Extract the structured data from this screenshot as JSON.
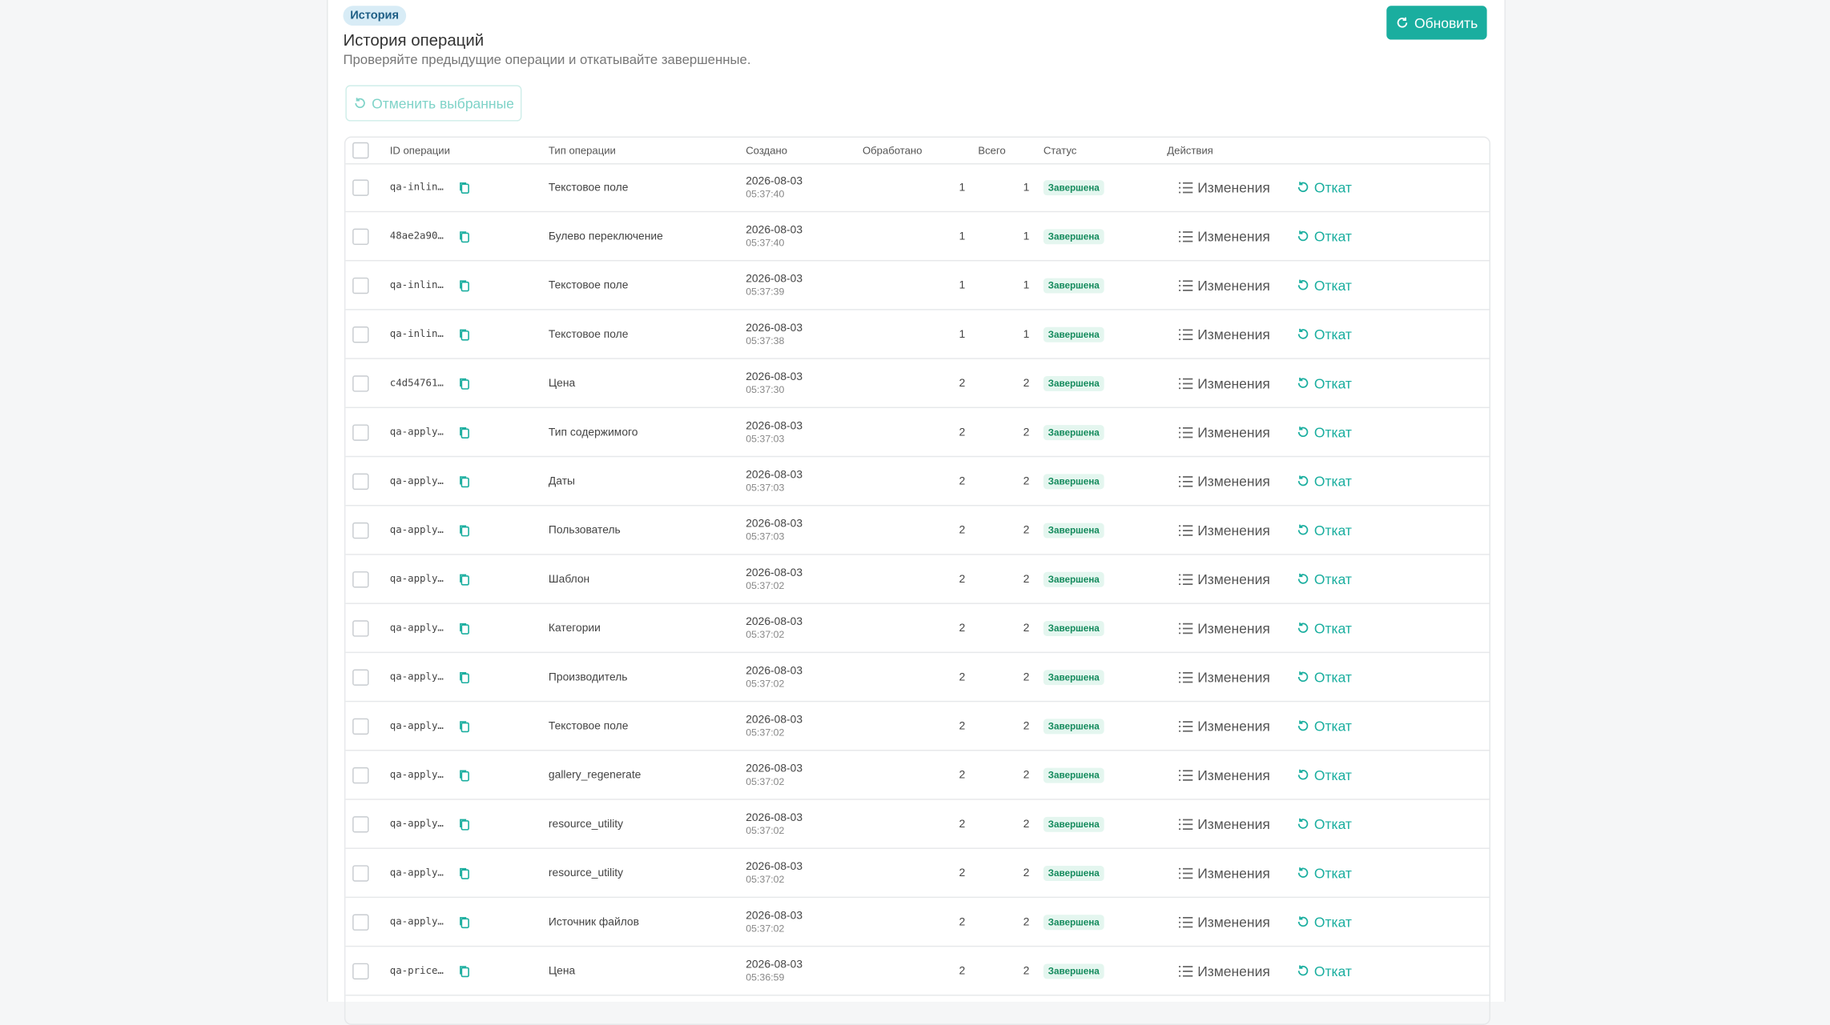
{
  "header": {
    "badge": "История",
    "title": "История операций",
    "subtitle": "Проверяйте предыдущие операции и откатывайте завершенные.",
    "refresh_button": "Обновить",
    "cancel_selected_button": "Отменить выбранные"
  },
  "table": {
    "columns": [
      "ID операции",
      "Тип операции",
      "Создано",
      "Обработано",
      "Всего",
      "Статус",
      "Действия"
    ],
    "actions": [
      "Изменения",
      "Откат"
    ],
    "rows": [
      {
        "id": "qa-inlin…",
        "type": "Текстовое поле",
        "date": "2026-08-03",
        "time": "05:37:40",
        "processed": 1,
        "total": 1,
        "status": "Завершена"
      },
      {
        "id": "48ae2a90…",
        "type": "Булево переключение",
        "date": "2026-08-03",
        "time": "05:37:40",
        "processed": 1,
        "total": 1,
        "status": "Завершена"
      },
      {
        "id": "qa-inlin…",
        "type": "Текстовое поле",
        "date": "2026-08-03",
        "time": "05:37:39",
        "processed": 1,
        "total": 1,
        "status": "Завершена"
      },
      {
        "id": "qa-inlin…",
        "type": "Текстовое поле",
        "date": "2026-08-03",
        "time": "05:37:38",
        "processed": 1,
        "total": 1,
        "status": "Завершена"
      },
      {
        "id": "c4d54761…",
        "type": "Цена",
        "date": "2026-08-03",
        "time": "05:37:30",
        "processed": 2,
        "total": 2,
        "status": "Завершена"
      },
      {
        "id": "qa-apply…",
        "type": "Тип содержимого",
        "date": "2026-08-03",
        "time": "05:37:03",
        "processed": 2,
        "total": 2,
        "status": "Завершена"
      },
      {
        "id": "qa-apply…",
        "type": "Даты",
        "date": "2026-08-03",
        "time": "05:37:03",
        "processed": 2,
        "total": 2,
        "status": "Завершена"
      },
      {
        "id": "qa-apply…",
        "type": "Пользователь",
        "date": "2026-08-03",
        "time": "05:37:03",
        "processed": 2,
        "total": 2,
        "status": "Завершена"
      },
      {
        "id": "qa-apply…",
        "type": "Шаблон",
        "date": "2026-08-03",
        "time": "05:37:02",
        "processed": 2,
        "total": 2,
        "status": "Завершена"
      },
      {
        "id": "qa-apply…",
        "type": "Категории",
        "date": "2026-08-03",
        "time": "05:37:02",
        "processed": 2,
        "total": 2,
        "status": "Завершена"
      },
      {
        "id": "qa-apply…",
        "type": "Производитель",
        "date": "2026-08-03",
        "time": "05:37:02",
        "processed": 2,
        "total": 2,
        "status": "Завершена"
      },
      {
        "id": "qa-apply…",
        "type": "Текстовое поле",
        "date": "2026-08-03",
        "time": "05:37:02",
        "processed": 2,
        "total": 2,
        "status": "Завершена"
      },
      {
        "id": "qa-apply…",
        "type": "gallery_regenerate",
        "date": "2026-08-03",
        "time": "05:37:02",
        "processed": 2,
        "total": 2,
        "status": "Завершена"
      },
      {
        "id": "qa-apply…",
        "type": "resource_utility",
        "date": "2026-08-03",
        "time": "05:37:02",
        "processed": 2,
        "total": 2,
        "status": "Завершена"
      },
      {
        "id": "qa-apply…",
        "type": "resource_utility",
        "date": "2026-08-03",
        "time": "05:37:02",
        "processed": 2,
        "total": 2,
        "status": "Завершена"
      },
      {
        "id": "qa-apply…",
        "type": "Источник файлов",
        "date": "2026-08-03",
        "time": "05:37:02",
        "processed": 2,
        "total": 2,
        "status": "Завершена"
      },
      {
        "id": "qa-price…",
        "type": "Цена",
        "date": "2026-08-03",
        "time": "05:36:59",
        "processed": 2,
        "total": 2,
        "status": "Завершена"
      }
    ]
  }
}
